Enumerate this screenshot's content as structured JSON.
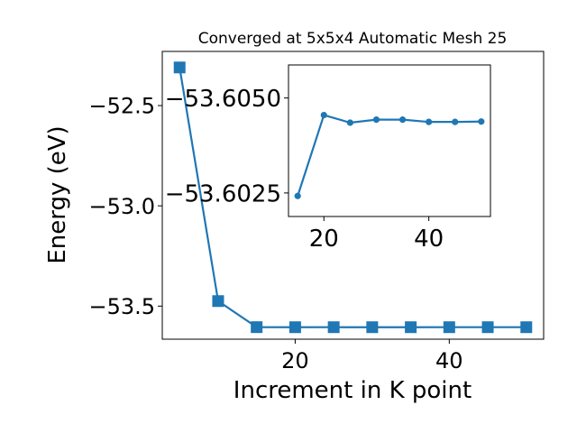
{
  "chart_data": [
    {
      "type": "line",
      "title": "Converged at 5x5x4 Automatic Mesh 25",
      "xlabel": "Increment in K point",
      "ylabel": "Energy (eV)",
      "xlim": [
        2.75,
        52.25
      ],
      "ylim": [
        -53.665,
        -52.23
      ],
      "xticks": [
        20,
        40
      ],
      "yticks": [
        -53.5,
        -53.0,
        -52.5
      ],
      "xtick_labels": [
        "20",
        "40"
      ],
      "ytick_labels": [
        "−53.5",
        "−53.0",
        "−52.5"
      ],
      "grid": false,
      "marker": "square",
      "color": "#1f77b4",
      "series": [
        {
          "x": [
            5,
            10,
            15,
            20,
            25,
            30,
            35,
            40,
            45,
            50
          ],
          "y": [
            -52.31,
            -53.475,
            -53.605,
            -53.6053,
            -53.6052,
            -53.60525,
            -53.60525,
            -53.6052,
            -53.6052,
            -53.60523
          ]
        }
      ]
    },
    {
      "type": "line",
      "title": "",
      "xlabel": "",
      "ylabel": "",
      "xlim": [
        13.25,
        51.75
      ],
      "ylim": [
        -53.60188,
        -53.60587
      ],
      "xticks": [
        20,
        40
      ],
      "yticks": [
        -53.605,
        -53.6025
      ],
      "xtick_labels": [
        "20",
        "40"
      ],
      "ytick_labels": [
        "−53.6050",
        "−53.6025"
      ],
      "grid": false,
      "marker": "circle",
      "color": "#1f77b4",
      "series": [
        {
          "x": [
            15,
            20,
            25,
            30,
            35,
            40,
            45,
            50
          ],
          "y": [
            -53.60242,
            -53.60455,
            -53.60435,
            -53.60443,
            -53.60443,
            -53.60437,
            -53.60437,
            -53.60438
          ]
        }
      ]
    }
  ]
}
